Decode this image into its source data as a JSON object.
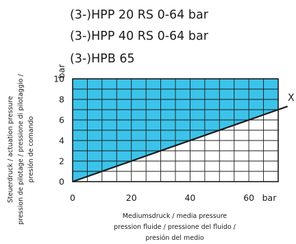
{
  "chart_data": {
    "type": "area",
    "title_lines": [
      "(3-)HPP 20 RS 0-64 bar",
      "(3-)HPP 40 RS 0-64 bar",
      "(3-)HPB 65"
    ],
    "xlabel_lines": [
      "Mediumsdruck / media pressure",
      "pression fluide / pressione del fluido /",
      "presión del medio"
    ],
    "ylabel_lines": [
      "Steuerdruck / actuation pressure",
      "pression de pilotage / pressione di pilotaggio /",
      "presión de comando"
    ],
    "x_unit": "bar",
    "y_unit": "bar",
    "xlim": [
      0,
      70
    ],
    "ylim": [
      0,
      10
    ],
    "x_ticks": [
      0,
      20,
      40,
      60
    ],
    "y_ticks": [
      0,
      2,
      4,
      6,
      8,
      10
    ],
    "x_grid_step": 5,
    "y_grid_step": 1,
    "grid": true,
    "fill_color": "#3cc3ea",
    "line_color": "#1a1a1a",
    "series": [
      {
        "type": "line",
        "x": [
          0,
          70
        ],
        "y": [
          0,
          7.0
        ],
        "fill": "above"
      }
    ],
    "annotations": [
      {
        "text": "X",
        "at_end_of_series": 0
      }
    ]
  }
}
